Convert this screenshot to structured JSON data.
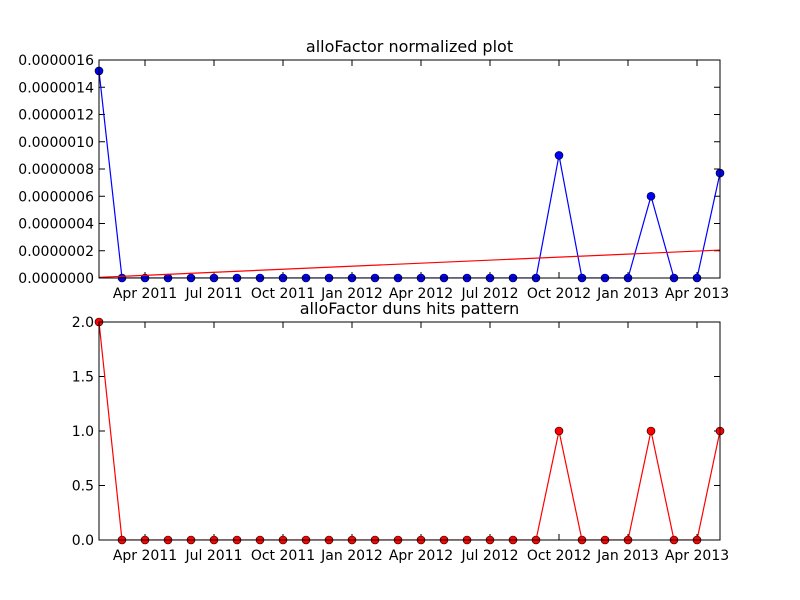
{
  "chart_data": [
    {
      "type": "line",
      "title": "alloFactor normalized plot",
      "x": [
        "2011-02",
        "2011-03",
        "2011-04",
        "2011-05",
        "2011-06",
        "2011-07",
        "2011-08",
        "2011-09",
        "2011-10",
        "2011-11",
        "2011-12",
        "2012-01",
        "2012-02",
        "2012-03",
        "2012-04",
        "2012-05",
        "2012-06",
        "2012-07",
        "2012-08",
        "2012-09",
        "2012-10",
        "2012-11",
        "2012-12",
        "2013-01",
        "2013-02",
        "2013-03",
        "2013-04",
        "2013-05"
      ],
      "xlim": [
        "2011-02",
        "2013-05"
      ],
      "xticks": [
        {
          "value": "2011-04",
          "label": "Apr 2011"
        },
        {
          "value": "2011-07",
          "label": "Jul 2011"
        },
        {
          "value": "2011-10",
          "label": "Oct 2011"
        },
        {
          "value": "2012-01",
          "label": "Jan 2012"
        },
        {
          "value": "2012-04",
          "label": "Apr 2012"
        },
        {
          "value": "2012-07",
          "label": "Jul 2012"
        },
        {
          "value": "2012-10",
          "label": "Oct 2012"
        },
        {
          "value": "2013-01",
          "label": "Jan 2013"
        },
        {
          "value": "2013-04",
          "label": "Apr 2013"
        }
      ],
      "ylim": [
        0,
        1.6e-06
      ],
      "yticks": [
        {
          "value": 0,
          "label": "0.0000000"
        },
        {
          "value": 2e-07,
          "label": "0.0000002"
        },
        {
          "value": 4e-07,
          "label": "0.0000004"
        },
        {
          "value": 6e-07,
          "label": "0.0000006"
        },
        {
          "value": 8e-07,
          "label": "0.0000008"
        },
        {
          "value": 1e-06,
          "label": "0.0000010"
        },
        {
          "value": 1.2e-06,
          "label": "0.0000012"
        },
        {
          "value": 1.4e-06,
          "label": "0.0000014"
        },
        {
          "value": 1.6e-06,
          "label": "0.0000016"
        }
      ],
      "series": [
        {
          "color": "#0000ff",
          "markers": true,
          "values": [
            1.52e-06,
            0,
            0,
            0,
            0,
            0,
            0,
            0,
            0,
            0,
            0,
            0,
            0,
            0,
            0,
            0,
            0,
            0,
            0,
            0,
            9e-07,
            0,
            0,
            0,
            6e-07,
            0,
            0,
            7.7e-07
          ]
        },
        {
          "color": "#ff0000",
          "markers": false,
          "x": [
            "2011-02",
            "2013-05"
          ],
          "values": [
            5e-09,
            2.05e-07
          ]
        }
      ]
    },
    {
      "type": "line",
      "title": "alloFactor duns hits pattern",
      "x": [
        "2011-02",
        "2011-03",
        "2011-04",
        "2011-05",
        "2011-06",
        "2011-07",
        "2011-08",
        "2011-09",
        "2011-10",
        "2011-11",
        "2011-12",
        "2012-01",
        "2012-02",
        "2012-03",
        "2012-04",
        "2012-05",
        "2012-06",
        "2012-07",
        "2012-08",
        "2012-09",
        "2012-10",
        "2012-11",
        "2012-12",
        "2013-01",
        "2013-02",
        "2013-03",
        "2013-04",
        "2013-05"
      ],
      "xlim": [
        "2011-02",
        "2013-05"
      ],
      "xticks": [
        {
          "value": "2011-04",
          "label": "Apr 2011"
        },
        {
          "value": "2011-07",
          "label": "Jul 2011"
        },
        {
          "value": "2011-10",
          "label": "Oct 2011"
        },
        {
          "value": "2012-01",
          "label": "Jan 2012"
        },
        {
          "value": "2012-04",
          "label": "Apr 2012"
        },
        {
          "value": "2012-07",
          "label": "Jul 2012"
        },
        {
          "value": "2012-10",
          "label": "Oct 2012"
        },
        {
          "value": "2013-01",
          "label": "Jan 2013"
        },
        {
          "value": "2013-04",
          "label": "Apr 2013"
        }
      ],
      "ylim": [
        0,
        2
      ],
      "yticks": [
        {
          "value": 0,
          "label": "0.0"
        },
        0.5,
        {
          "value": 1,
          "label": "1.0"
        },
        1.5,
        {
          "value": 2,
          "label": "2.0"
        }
      ],
      "series": [
        {
          "color": "#ff0000",
          "markers": true,
          "values": [
            2,
            0,
            0,
            0,
            0,
            0,
            0,
            0,
            0,
            0,
            0,
            0,
            0,
            0,
            0,
            0,
            0,
            0,
            0,
            0,
            1,
            0,
            0,
            0,
            1,
            0,
            0,
            1
          ]
        }
      ]
    }
  ]
}
